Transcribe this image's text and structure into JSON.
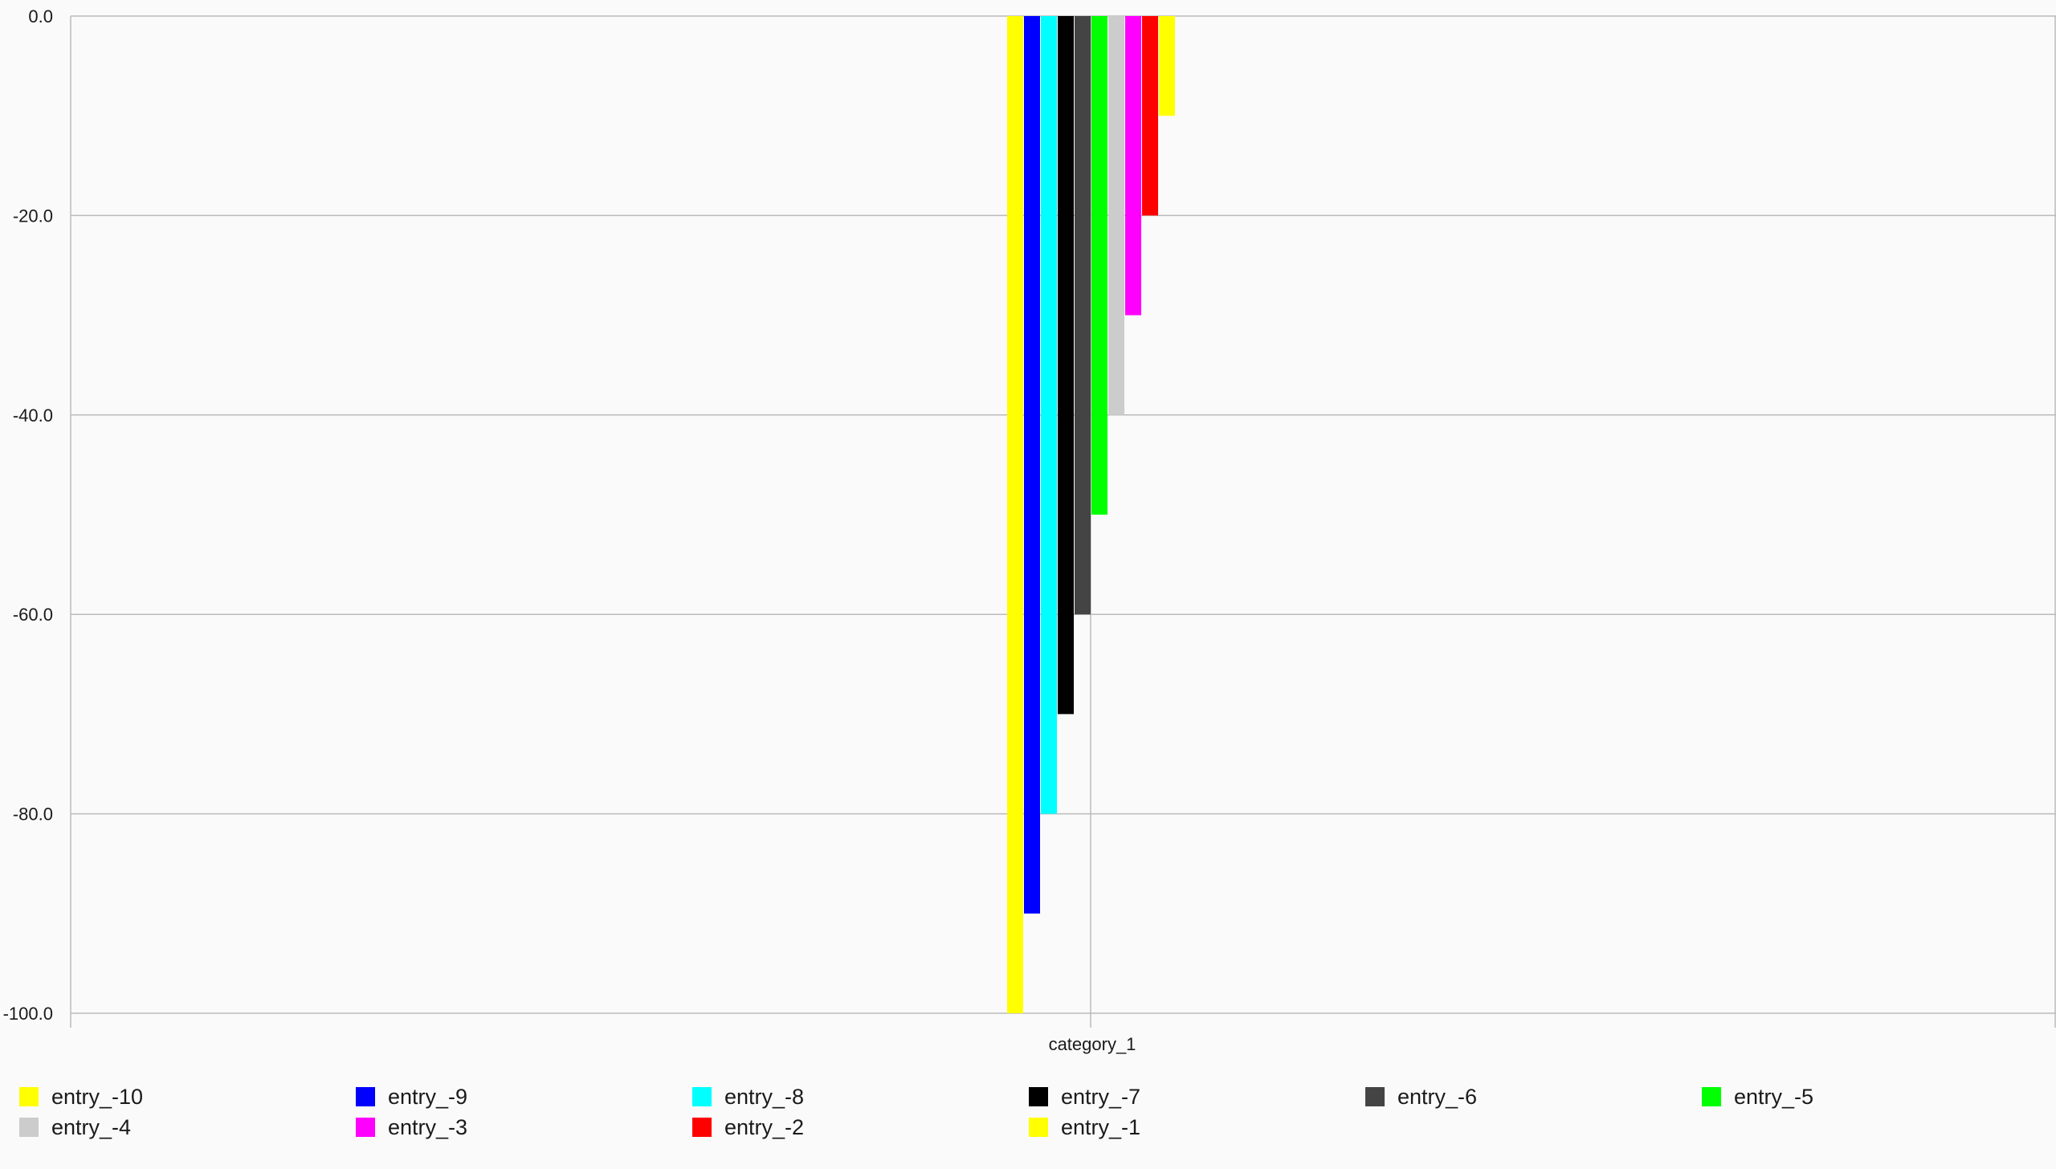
{
  "chart_data": {
    "type": "bar",
    "categories": [
      "category_1"
    ],
    "series": [
      {
        "name": "entry_-10",
        "values": [
          -100
        ],
        "color": "#ffff00"
      },
      {
        "name": "entry_-9",
        "values": [
          -90
        ],
        "color": "#0000ff"
      },
      {
        "name": "entry_-8",
        "values": [
          -80
        ],
        "color": "#00ffff"
      },
      {
        "name": "entry_-7",
        "values": [
          -70
        ],
        "color": "#000000"
      },
      {
        "name": "entry_-6",
        "values": [
          -60
        ],
        "color": "#444444"
      },
      {
        "name": "entry_-5",
        "values": [
          -50
        ],
        "color": "#00ff00"
      },
      {
        "name": "entry_-4",
        "values": [
          -40
        ],
        "color": "#cccccc"
      },
      {
        "name": "entry_-3",
        "values": [
          -30
        ],
        "color": "#ff00ff"
      },
      {
        "name": "entry_-2",
        "values": [
          -20
        ],
        "color": "#ff0000"
      },
      {
        "name": "entry_-1",
        "values": [
          -10
        ],
        "color": "#ffff00"
      }
    ],
    "y_ticks": [
      "0.0",
      "-20.0",
      "-40.0",
      "-60.0",
      "-80.0",
      "-100.0"
    ],
    "y_tick_values": [
      0,
      -20,
      -40,
      -60,
      -80,
      -100
    ],
    "ylim": [
      -100,
      0
    ],
    "grid": true,
    "legend_position": "bottom-left",
    "gridline_color": "#bbbbbb",
    "background_color": "#fafafa"
  }
}
